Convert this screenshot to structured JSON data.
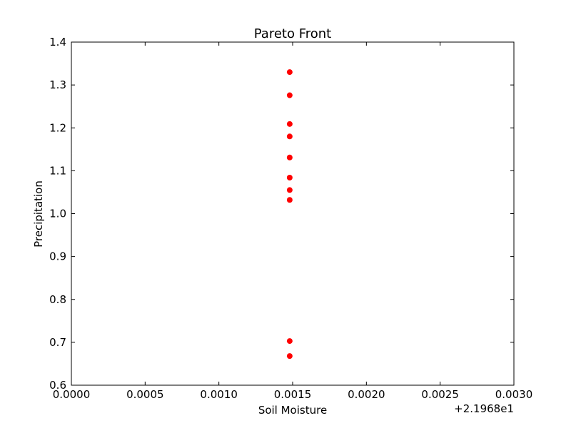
{
  "chart_data": {
    "type": "scatter",
    "title": "Pareto Front",
    "xlabel": "Soil Moisture",
    "ylabel": "Precipitation",
    "x_offset_label": "+2.1968e1",
    "xlim": [
      0.0,
      0.003
    ],
    "ylim": [
      0.6,
      1.4
    ],
    "x_ticks": [
      "0.0000",
      "0.0005",
      "0.0010",
      "0.0015",
      "0.0020",
      "0.0025",
      "0.0030"
    ],
    "x_tick_values": [
      0.0,
      0.0005,
      0.001,
      0.0015,
      0.002,
      0.0025,
      0.003
    ],
    "y_ticks": [
      "0.6",
      "0.7",
      "0.8",
      "0.9",
      "1.0",
      "1.1",
      "1.2",
      "1.3",
      "1.4"
    ],
    "y_tick_values": [
      0.6,
      0.7,
      0.8,
      0.9,
      1.0,
      1.1,
      1.2,
      1.3,
      1.4
    ],
    "grid": false,
    "marker_color": "#ff0000",
    "points": [
      {
        "x": 0.00148,
        "y": 1.33
      },
      {
        "x": 0.00148,
        "y": 1.276
      },
      {
        "x": 0.00148,
        "y": 1.209
      },
      {
        "x": 0.00148,
        "y": 1.18
      },
      {
        "x": 0.00148,
        "y": 1.131
      },
      {
        "x": 0.00148,
        "y": 1.084
      },
      {
        "x": 0.00148,
        "y": 1.055
      },
      {
        "x": 0.00148,
        "y": 1.032
      },
      {
        "x": 0.00148,
        "y": 0.703
      },
      {
        "x": 0.00148,
        "y": 0.668
      }
    ]
  }
}
